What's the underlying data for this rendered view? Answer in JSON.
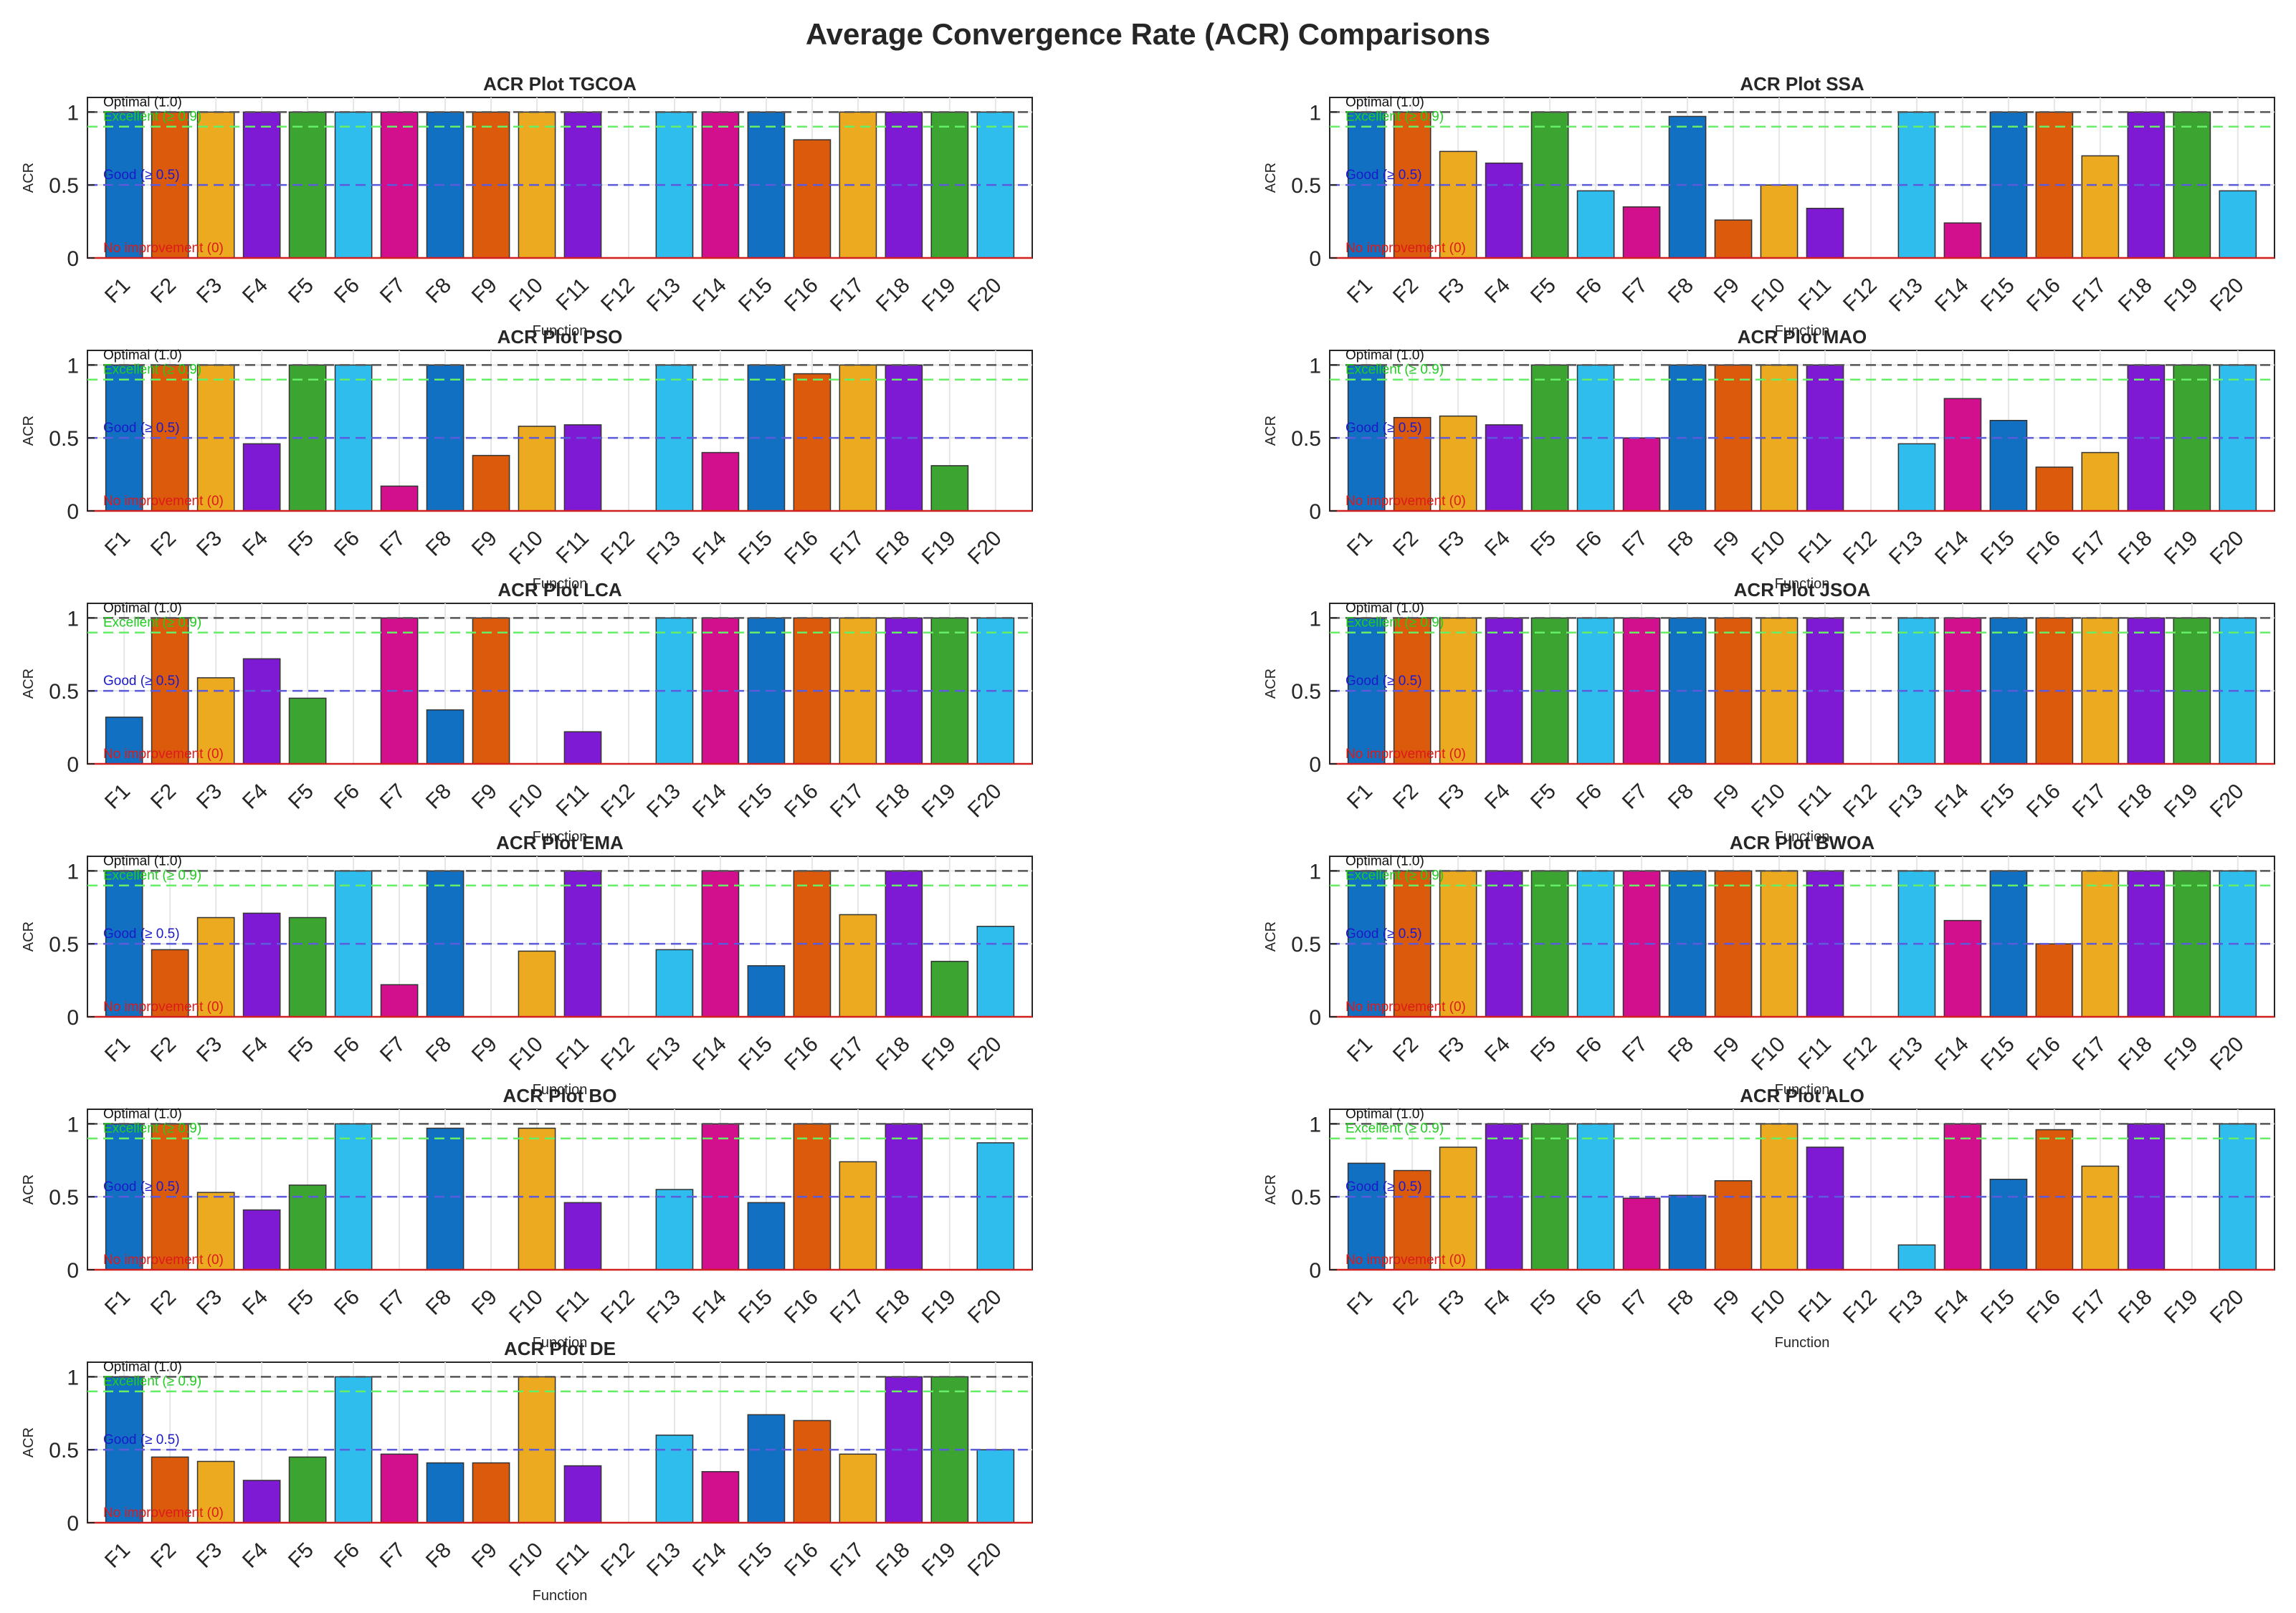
{
  "figure_title": "Average Convergence Rate (ACR) Comparisons",
  "chart_data": [
    {
      "type": "bar",
      "title": "ACR Plot TGCOA",
      "xlabel": "Function",
      "ylabel": "ACR",
      "ylim": [
        0,
        1.1
      ],
      "categories": [
        "F1",
        "F2",
        "F3",
        "F4",
        "F5",
        "F6",
        "F7",
        "F8",
        "F9",
        "F10",
        "F11",
        "F12",
        "F13",
        "F14",
        "F15",
        "F16",
        "F17",
        "F18",
        "F19",
        "F20"
      ],
      "values": [
        1,
        1,
        1,
        1,
        1,
        1,
        1,
        1,
        1,
        1,
        1,
        0,
        1,
        1,
        1,
        0.81,
        1,
        1,
        1,
        1
      ],
      "yticks": [
        "0",
        "0.5",
        "1"
      ],
      "reference_lines": [
        {
          "label": "Optimal (1.0)",
          "value": 1.0
        },
        {
          "label": "Excellent (≥ 0.9)",
          "value": 0.9
        },
        {
          "label": "Good (≥ 0.5)",
          "value": 0.5
        },
        {
          "label": "No improvement (0)",
          "value": 0
        }
      ]
    },
    {
      "type": "bar",
      "title": "ACR Plot SSA",
      "xlabel": "Function",
      "ylabel": "ACR",
      "ylim": [
        0,
        1.1
      ],
      "categories": [
        "F1",
        "F2",
        "F3",
        "F4",
        "F5",
        "F6",
        "F7",
        "F8",
        "F9",
        "F10",
        "F11",
        "F12",
        "F13",
        "F14",
        "F15",
        "F16",
        "F17",
        "F18",
        "F19",
        "F20"
      ],
      "values": [
        1,
        1,
        0.73,
        0.65,
        1,
        0.46,
        0.35,
        0.97,
        0.26,
        0.5,
        0.34,
        0,
        1,
        0.24,
        1,
        1,
        0.7,
        1,
        1,
        0.46
      ],
      "yticks": [
        "0",
        "0.5",
        "1"
      ],
      "reference_lines": [
        {
          "label": "Optimal (1.0)",
          "value": 1.0
        },
        {
          "label": "Excellent (≥ 0.9)",
          "value": 0.9
        },
        {
          "label": "Good (≥ 0.5)",
          "value": 0.5
        },
        {
          "label": "No improvement (0)",
          "value": 0
        }
      ]
    },
    {
      "type": "bar",
      "title": "ACR Plot PSO",
      "xlabel": "Function",
      "ylabel": "ACR",
      "ylim": [
        0,
        1.1
      ],
      "categories": [
        "F1",
        "F2",
        "F3",
        "F4",
        "F5",
        "F6",
        "F7",
        "F8",
        "F9",
        "F10",
        "F11",
        "F12",
        "F13",
        "F14",
        "F15",
        "F16",
        "F17",
        "F18",
        "F19",
        "F20"
      ],
      "values": [
        1,
        1,
        1,
        0.46,
        1,
        1,
        0.17,
        1,
        0.38,
        0.58,
        0.59,
        0,
        1,
        0.4,
        1,
        0.94,
        1,
        1,
        0.31,
        0
      ],
      "yticks": [
        "0",
        "0.5",
        "1"
      ],
      "reference_lines": [
        {
          "label": "Optimal (1.0)",
          "value": 1.0
        },
        {
          "label": "Excellent (≥ 0.9)",
          "value": 0.9
        },
        {
          "label": "Good (≥ 0.5)",
          "value": 0.5
        },
        {
          "label": "No improvement (0)",
          "value": 0
        }
      ]
    },
    {
      "type": "bar",
      "title": "ACR Plot MAO",
      "xlabel": "Function",
      "ylabel": "ACR",
      "ylim": [
        0,
        1.1
      ],
      "categories": [
        "F1",
        "F2",
        "F3",
        "F4",
        "F5",
        "F6",
        "F7",
        "F8",
        "F9",
        "F10",
        "F11",
        "F12",
        "F13",
        "F14",
        "F15",
        "F16",
        "F17",
        "F18",
        "F19",
        "F20"
      ],
      "values": [
        1,
        0.64,
        0.65,
        0.59,
        1,
        1,
        0.5,
        1,
        1,
        1,
        1,
        0,
        0.46,
        0.77,
        0.62,
        0.3,
        0.4,
        1,
        1,
        1
      ],
      "yticks": [
        "0",
        "0.5",
        "1"
      ],
      "reference_lines": [
        {
          "label": "Optimal (1.0)",
          "value": 1.0
        },
        {
          "label": "Excellent (≥ 0.9)",
          "value": 0.9
        },
        {
          "label": "Good (≥ 0.5)",
          "value": 0.5
        },
        {
          "label": "No improvement (0)",
          "value": 0
        }
      ]
    },
    {
      "type": "bar",
      "title": "ACR Plot LCA",
      "xlabel": "Function",
      "ylabel": "ACR",
      "ylim": [
        0,
        1.1
      ],
      "categories": [
        "F1",
        "F2",
        "F3",
        "F4",
        "F5",
        "F6",
        "F7",
        "F8",
        "F9",
        "F10",
        "F11",
        "F12",
        "F13",
        "F14",
        "F15",
        "F16",
        "F17",
        "F18",
        "F19",
        "F20"
      ],
      "values": [
        0.32,
        1,
        0.59,
        0.72,
        0.45,
        0,
        1,
        0.37,
        1,
        0,
        0.22,
        0,
        1,
        1,
        1,
        1,
        1,
        1,
        1,
        1
      ],
      "yticks": [
        "0",
        "0.5",
        "1"
      ],
      "reference_lines": [
        {
          "label": "Optimal (1.0)",
          "value": 1.0
        },
        {
          "label": "Excellent (≥ 0.9)",
          "value": 0.9
        },
        {
          "label": "Good (≥ 0.5)",
          "value": 0.5
        },
        {
          "label": "No improvement (0)",
          "value": 0
        }
      ]
    },
    {
      "type": "bar",
      "title": "ACR Plot JSOA",
      "xlabel": "Function",
      "ylabel": "ACR",
      "ylim": [
        0,
        1.1
      ],
      "categories": [
        "F1",
        "F2",
        "F3",
        "F4",
        "F5",
        "F6",
        "F7",
        "F8",
        "F9",
        "F10",
        "F11",
        "F12",
        "F13",
        "F14",
        "F15",
        "F16",
        "F17",
        "F18",
        "F19",
        "F20"
      ],
      "values": [
        1,
        1,
        1,
        1,
        1,
        1,
        1,
        1,
        1,
        1,
        1,
        0,
        1,
        1,
        1,
        1,
        1,
        1,
        1,
        1
      ],
      "yticks": [
        "0",
        "0.5",
        "1"
      ],
      "reference_lines": [
        {
          "label": "Optimal (1.0)",
          "value": 1.0
        },
        {
          "label": "Excellent (≥ 0.9)",
          "value": 0.9
        },
        {
          "label": "Good (≥ 0.5)",
          "value": 0.5
        },
        {
          "label": "No improvement (0)",
          "value": 0
        }
      ]
    },
    {
      "type": "bar",
      "title": "ACR Plot EMA",
      "xlabel": "Function",
      "ylabel": "ACR",
      "ylim": [
        0,
        1.1
      ],
      "categories": [
        "F1",
        "F2",
        "F3",
        "F4",
        "F5",
        "F6",
        "F7",
        "F8",
        "F9",
        "F10",
        "F11",
        "F12",
        "F13",
        "F14",
        "F15",
        "F16",
        "F17",
        "F18",
        "F19",
        "F20"
      ],
      "values": [
        1,
        0.46,
        0.68,
        0.71,
        0.68,
        1,
        0.22,
        1,
        0,
        0.45,
        1,
        0,
        0.46,
        1,
        0.35,
        1,
        0.7,
        1,
        0.38,
        0.62
      ],
      "yticks": [
        "0",
        "0.5",
        "1"
      ],
      "reference_lines": [
        {
          "label": "Optimal (1.0)",
          "value": 1.0
        },
        {
          "label": "Excellent (≥ 0.9)",
          "value": 0.9
        },
        {
          "label": "Good (≥ 0.5)",
          "value": 0.5
        },
        {
          "label": "No improvement (0)",
          "value": 0
        }
      ]
    },
    {
      "type": "bar",
      "title": "ACR Plot BWOA",
      "xlabel": "Function",
      "ylabel": "ACR",
      "ylim": [
        0,
        1.1
      ],
      "categories": [
        "F1",
        "F2",
        "F3",
        "F4",
        "F5",
        "F6",
        "F7",
        "F8",
        "F9",
        "F10",
        "F11",
        "F12",
        "F13",
        "F14",
        "F15",
        "F16",
        "F17",
        "F18",
        "F19",
        "F20"
      ],
      "values": [
        1,
        1,
        1,
        1,
        1,
        1,
        1,
        1,
        1,
        1,
        1,
        0,
        1,
        0.66,
        1,
        0.5,
        1,
        1,
        1,
        1
      ],
      "yticks": [
        "0",
        "0.5",
        "1"
      ],
      "reference_lines": [
        {
          "label": "Optimal (1.0)",
          "value": 1.0
        },
        {
          "label": "Excellent (≥ 0.9)",
          "value": 0.9
        },
        {
          "label": "Good (≥ 0.5)",
          "value": 0.5
        },
        {
          "label": "No improvement (0)",
          "value": 0
        }
      ]
    },
    {
      "type": "bar",
      "title": "ACR Plot BO",
      "xlabel": "Function",
      "ylabel": "ACR",
      "ylim": [
        0,
        1.1
      ],
      "categories": [
        "F1",
        "F2",
        "F3",
        "F4",
        "F5",
        "F6",
        "F7",
        "F8",
        "F9",
        "F10",
        "F11",
        "F12",
        "F13",
        "F14",
        "F15",
        "F16",
        "F17",
        "F18",
        "F19",
        "F20"
      ],
      "values": [
        1,
        1,
        0.53,
        0.41,
        0.58,
        1,
        0,
        0.97,
        0,
        0.97,
        0.46,
        0,
        0.55,
        1,
        0.46,
        1,
        0.74,
        1,
        0,
        0.87
      ],
      "yticks": [
        "0",
        "0.5",
        "1"
      ],
      "reference_lines": [
        {
          "label": "Optimal (1.0)",
          "value": 1.0
        },
        {
          "label": "Excellent (≥ 0.9)",
          "value": 0.9
        },
        {
          "label": "Good (≥ 0.5)",
          "value": 0.5
        },
        {
          "label": "No improvement (0)",
          "value": 0
        }
      ]
    },
    {
      "type": "bar",
      "title": "ACR Plot ALO",
      "xlabel": "Function",
      "ylabel": "ACR",
      "ylim": [
        0,
        1.1
      ],
      "categories": [
        "F1",
        "F2",
        "F3",
        "F4",
        "F5",
        "F6",
        "F7",
        "F8",
        "F9",
        "F10",
        "F11",
        "F12",
        "F13",
        "F14",
        "F15",
        "F16",
        "F17",
        "F18",
        "F19",
        "F20"
      ],
      "values": [
        0.73,
        0.68,
        0.84,
        1,
        1,
        1,
        0.49,
        0.51,
        0.61,
        1,
        0.84,
        0,
        0.17,
        1,
        0.62,
        0.96,
        0.71,
        1,
        0,
        1
      ],
      "yticks": [
        "0",
        "0.5",
        "1"
      ],
      "reference_lines": [
        {
          "label": "Optimal (1.0)",
          "value": 1.0
        },
        {
          "label": "Excellent (≥ 0.9)",
          "value": 0.9
        },
        {
          "label": "Good (≥ 0.5)",
          "value": 0.5
        },
        {
          "label": "No improvement (0)",
          "value": 0
        }
      ]
    },
    {
      "type": "bar",
      "title": "ACR Plot DE",
      "xlabel": "Function",
      "ylabel": "ACR",
      "ylim": [
        0,
        1.1
      ],
      "categories": [
        "F1",
        "F2",
        "F3",
        "F4",
        "F5",
        "F6",
        "F7",
        "F8",
        "F9",
        "F10",
        "F11",
        "F12",
        "F13",
        "F14",
        "F15",
        "F16",
        "F17",
        "F18",
        "F19",
        "F20"
      ],
      "values": [
        1,
        0.45,
        0.42,
        0.29,
        0.45,
        1,
        0.47,
        0.41,
        0.41,
        1,
        0.39,
        0,
        0.6,
        0.35,
        0.74,
        0.7,
        0.47,
        1,
        1,
        0.5
      ],
      "yticks": [
        "0",
        "0.5",
        "1"
      ],
      "reference_lines": [
        {
          "label": "Optimal (1.0)",
          "value": 1.0
        },
        {
          "label": "Excellent (≥ 0.9)",
          "value": 0.9
        },
        {
          "label": "Good (≥ 0.5)",
          "value": 0.5
        },
        {
          "label": "No improvement (0)",
          "value": 0
        }
      ]
    }
  ],
  "colors": {
    "bars": [
      "#1170c2",
      "#dc5a0b",
      "#ecaa20",
      "#7f1ad4",
      "#3ca532",
      "#2fbdee",
      "#d20f8c"
    ],
    "optimal_line": "#555555",
    "excellent_line": "#66ee66",
    "good_line": "#5b5bdb",
    "zero_line": "#d22020",
    "optimal_text": "#111111",
    "excellent_text": "#22cc22",
    "good_text": "#1a1acc",
    "zero_text": "#dd1a1a",
    "grid": "#e6e6e6",
    "axis": "#262626"
  }
}
